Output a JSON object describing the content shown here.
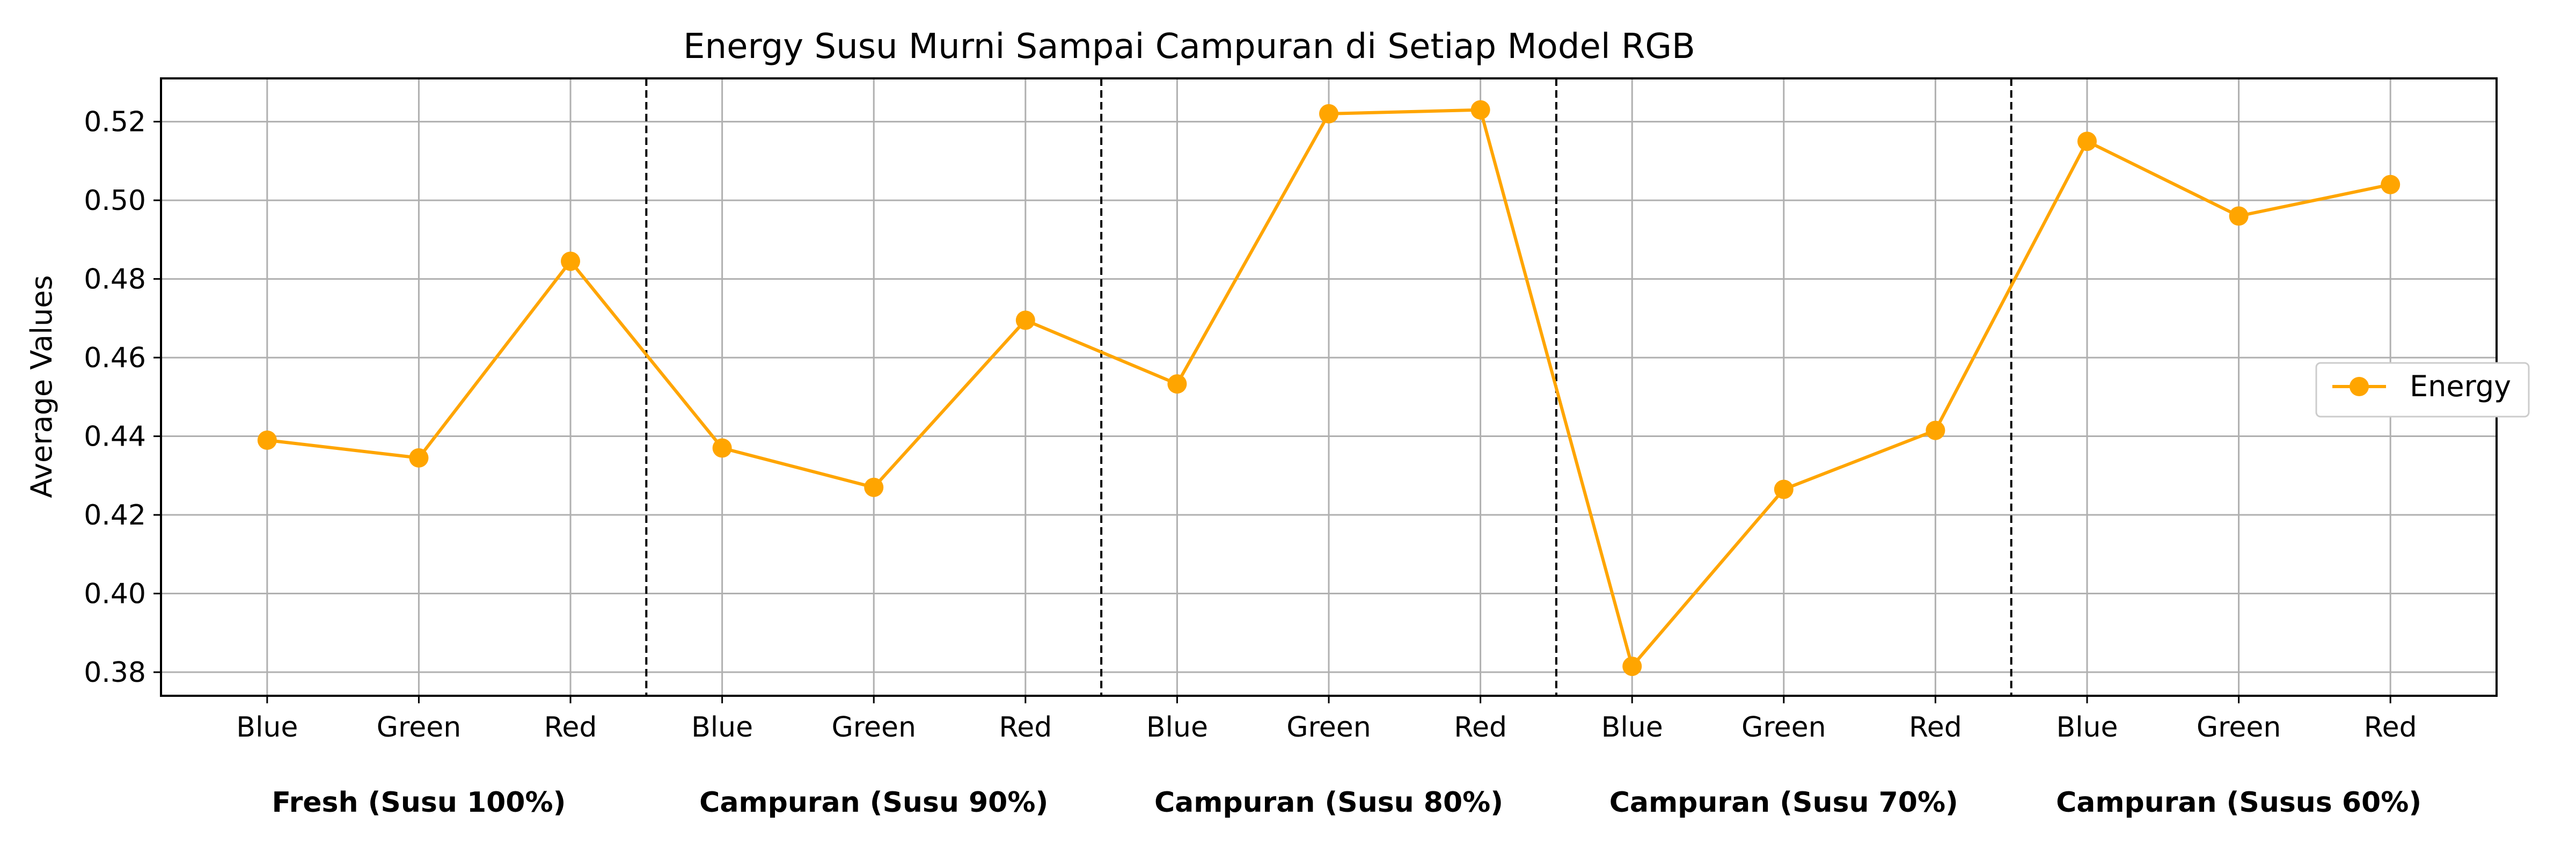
{
  "chart_data": {
    "type": "line",
    "title": "Energy Susu Murni Sampai Campuran di Setiap Model RGB",
    "ylabel": "Average Values",
    "xlabel": "",
    "ylim": [
      0.374,
      0.531
    ],
    "yticks": [
      0.38,
      0.4,
      0.42,
      0.44,
      0.46,
      0.48,
      0.5,
      0.52
    ],
    "grid": true,
    "legend_position": "right",
    "categories": [
      "Blue",
      "Green",
      "Red",
      "Blue",
      "Green",
      "Red",
      "Blue",
      "Green",
      "Red",
      "Blue",
      "Green",
      "Red",
      "Blue",
      "Green",
      "Red"
    ],
    "groups": [
      "Fresh (Susu 100%)",
      "Campuran (Susu 90%)",
      "Campuran (Susu 80%)",
      "Campuran (Susu 70%)",
      "Campuran (Susus 60%)"
    ],
    "series": [
      {
        "name": "Energy",
        "color": "#FFA500",
        "values": [
          0.439,
          0.4345,
          0.4845,
          0.437,
          0.427,
          0.4695,
          0.4533,
          0.522,
          0.523,
          0.3815,
          0.4265,
          0.4415,
          0.515,
          0.496,
          0.504
        ]
      }
    ]
  }
}
